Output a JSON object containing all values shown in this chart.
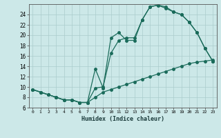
{
  "xlabel": "Humidex (Indice chaleur)",
  "bg_color": "#cce8e8",
  "line_color": "#1a6b5a",
  "grid_color": "#aacccc",
  "xlim": [
    -0.5,
    23.5
  ],
  "ylim": [
    6,
    26
  ],
  "xticks": [
    0,
    1,
    2,
    3,
    4,
    5,
    6,
    7,
    8,
    9,
    10,
    11,
    12,
    13,
    14,
    15,
    16,
    17,
    18,
    19,
    20,
    21,
    22,
    23
  ],
  "yticks": [
    6,
    8,
    10,
    12,
    14,
    16,
    18,
    20,
    22,
    24
  ],
  "line1_x": [
    0,
    1,
    2,
    3,
    4,
    5,
    6,
    7,
    8,
    9,
    10,
    11,
    12,
    13,
    14,
    15,
    16,
    17,
    18,
    19,
    20,
    21,
    22,
    23
  ],
  "line1_y": [
    9.5,
    9.0,
    8.5,
    8.0,
    7.5,
    7.5,
    7.0,
    7.0,
    8.0,
    9.0,
    9.5,
    10.0,
    10.5,
    11.0,
    11.5,
    12.0,
    12.5,
    13.0,
    13.5,
    14.0,
    14.5,
    14.8,
    15.0,
    15.2
  ],
  "line2_x": [
    0,
    1,
    2,
    3,
    4,
    5,
    6,
    7,
    8,
    9,
    10,
    11,
    12,
    13,
    14,
    15,
    16,
    17,
    18,
    19,
    20,
    21,
    22,
    23
  ],
  "line2_y": [
    9.5,
    9.0,
    8.5,
    8.0,
    7.5,
    7.5,
    7.0,
    7.0,
    9.8,
    10.0,
    16.5,
    19.0,
    19.5,
    19.5,
    23.0,
    25.5,
    25.8,
    25.2,
    24.5,
    24.0,
    22.5,
    20.5,
    17.5,
    15.0
  ],
  "line3_x": [
    0,
    1,
    2,
    3,
    4,
    5,
    6,
    7,
    8,
    9,
    10,
    11,
    12,
    13,
    14,
    15,
    16,
    17,
    18,
    19,
    20,
    21,
    22,
    23
  ],
  "line3_y": [
    9.5,
    9.0,
    8.5,
    8.0,
    7.5,
    7.5,
    7.0,
    7.0,
    13.5,
    9.8,
    19.5,
    20.5,
    19.0,
    19.0,
    23.0,
    25.5,
    25.8,
    25.5,
    24.5,
    24.0,
    22.5,
    20.5,
    17.5,
    15.0
  ]
}
